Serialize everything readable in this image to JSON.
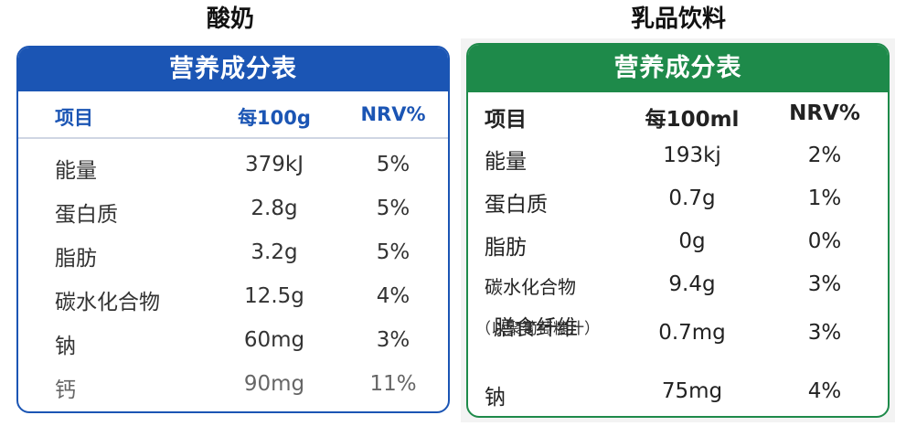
{
  "left": {
    "caption": "酸奶",
    "title": "营养成分表",
    "headers": [
      "项目",
      "每100g",
      "NRV%"
    ],
    "rows": [
      [
        "能量",
        "379kJ",
        "5%"
      ],
      [
        "蛋白质",
        "2.8g",
        "5%"
      ],
      [
        "脂肪",
        "3.2g",
        "5%"
      ],
      [
        "碳水化合物",
        "12.5g",
        "4%"
      ],
      [
        "钠",
        "60mg",
        "3%"
      ],
      [
        "钙",
        "90mg",
        "11%"
      ]
    ],
    "colors": {
      "accent": "#1b55b4"
    }
  },
  "right": {
    "caption": "乳品饮料",
    "title": "营养成分表",
    "headers": [
      "项目",
      "每100ml",
      "NRV%"
    ],
    "rows": [
      [
        "能量",
        "193kj",
        "2%"
      ],
      [
        "蛋白质",
        "0.7g",
        "1%"
      ],
      [
        "脂肪",
        "0g",
        "0%"
      ],
      [
        "碳水化合物",
        "9.4g",
        "3%"
      ],
      [
        "膳食纤维",
        "0.7mg",
        "3%"
      ],
      [
        "钠",
        "75mg",
        "4%"
      ]
    ],
    "fiber_note": "（以聚葡萄糖汁）",
    "colors": {
      "accent": "#1e8a4a"
    }
  }
}
